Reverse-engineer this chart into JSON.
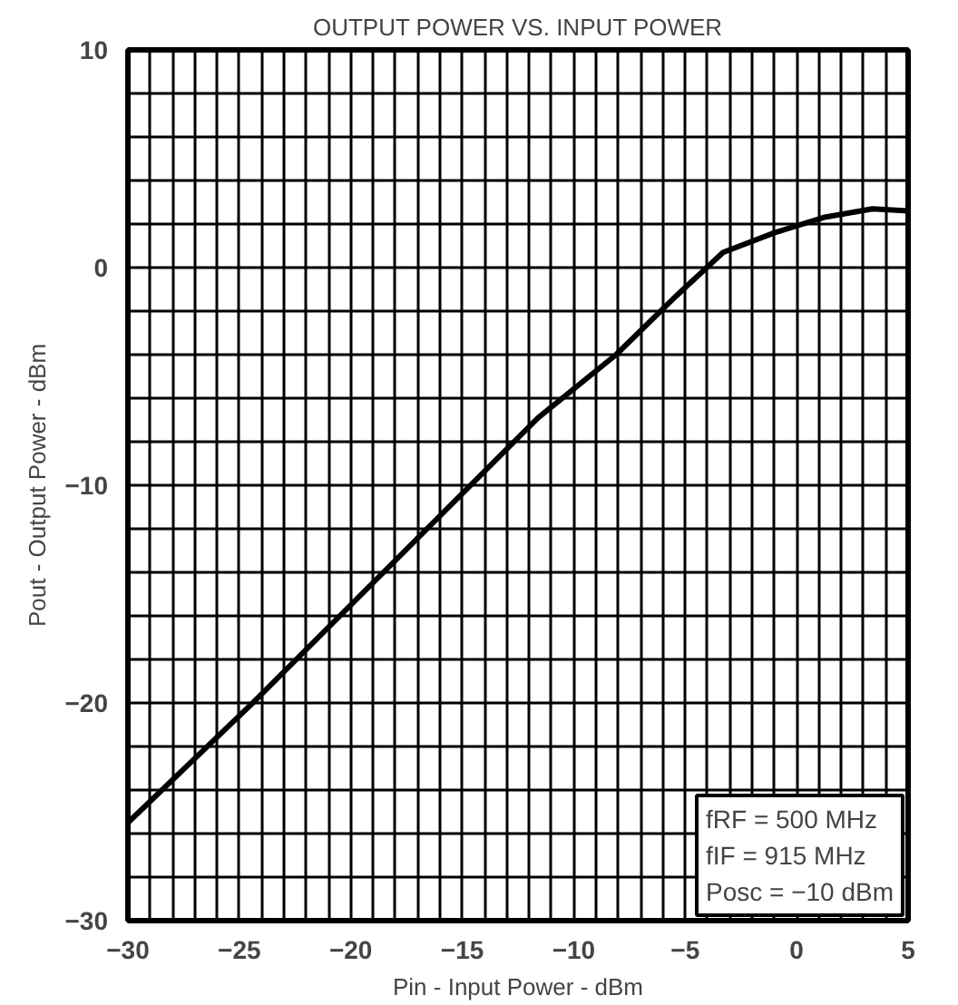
{
  "chart_data": {
    "type": "line",
    "title": "OUTPUT POWER VS. INPUT POWER",
    "xlabel": "Pin - Input Power - dBm",
    "ylabel": "Pout - Output Power - dBm",
    "x": [
      -30,
      -24.4,
      -11.6,
      -8.1,
      -5.4,
      -3.3,
      -1,
      1.2,
      3.4,
      5
    ],
    "series": [
      {
        "color": "#000000",
        "values": [
          -25.5,
          -20,
          -6.9,
          -4.0,
          -1.3,
          0.7,
          1.6,
          2.3,
          2.7,
          2.6
        ]
      }
    ],
    "xlim": [
      -30,
      5
    ],
    "ylim": [
      -30,
      10
    ],
    "xticks": [
      -30,
      {
        "value": -29,
        "label": null
      },
      {
        "value": -28,
        "label": null
      },
      {
        "value": -27,
        "label": null
      },
      {
        "value": -26,
        "label": null
      },
      -25,
      {
        "value": -24,
        "label": null
      },
      {
        "value": -23,
        "label": null
      },
      {
        "value": -22,
        "label": null
      },
      {
        "value": -21,
        "label": null
      },
      -20,
      {
        "value": -19,
        "label": null
      },
      {
        "value": -18,
        "label": null
      },
      {
        "value": -17,
        "label": null
      },
      {
        "value": -16,
        "label": null
      },
      -15,
      {
        "value": -14,
        "label": null
      },
      {
        "value": -13,
        "label": null
      },
      {
        "value": -12,
        "label": null
      },
      {
        "value": -11,
        "label": null
      },
      -10,
      {
        "value": -9,
        "label": null
      },
      {
        "value": -8,
        "label": null
      },
      {
        "value": -7,
        "label": null
      },
      {
        "value": -6,
        "label": null
      },
      -5,
      {
        "value": -4,
        "label": null
      },
      {
        "value": -3,
        "label": null
      },
      {
        "value": -2,
        "label": null
      },
      {
        "value": -1,
        "label": null
      },
      0,
      {
        "value": 1,
        "label": null
      },
      {
        "value": 2,
        "label": null
      },
      {
        "value": 3,
        "label": null
      },
      {
        "value": 4,
        "label": null
      },
      5
    ],
    "yticks": [
      -30,
      {
        "value": -28,
        "label": null
      },
      {
        "value": -26,
        "label": null
      },
      {
        "value": -24,
        "label": null
      },
      {
        "value": -22,
        "label": null
      },
      -20,
      {
        "value": -18,
        "label": null
      },
      {
        "value": -16,
        "label": null
      },
      {
        "value": -14,
        "label": null
      },
      {
        "value": -12,
        "label": null
      },
      -10,
      {
        "value": -8,
        "label": null
      },
      {
        "value": -6,
        "label": null
      },
      {
        "value": -4,
        "label": null
      },
      {
        "value": -2,
        "label": null
      },
      0,
      {
        "value": 2,
        "label": null
      },
      {
        "value": 4,
        "label": null
      },
      {
        "value": 6,
        "label": null
      },
      {
        "value": 8,
        "label": null
      },
      10
    ],
    "grid": true,
    "line_style": "solid",
    "marker": "none",
    "annotations": [
      "fRF = 500 MHz",
      "fIF = 915 MHz",
      "Posc = −10 dBm"
    ]
  }
}
